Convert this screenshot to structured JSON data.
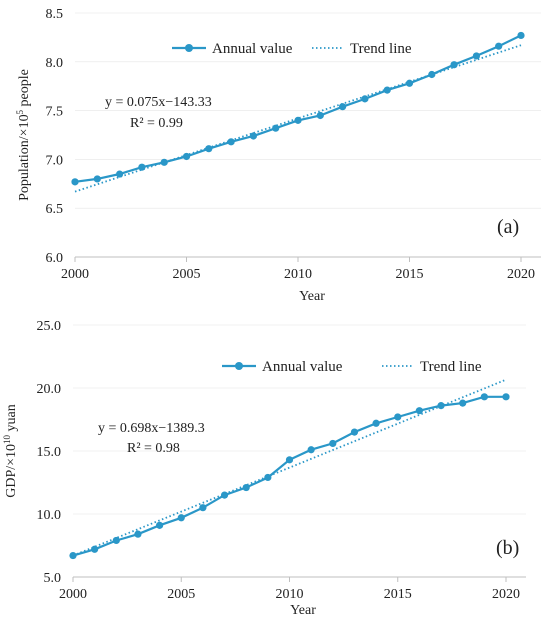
{
  "colors": {
    "series": "#2a97c8",
    "axis": "#bfbfbf",
    "text": "#222222"
  },
  "chart_data": [
    {
      "type": "line",
      "panel_label": "(a)",
      "xlabel": "Year",
      "ylabel_main": "Population/×10",
      "ylabel_sup": "5",
      "ylabel_tail": " people",
      "xlim": [
        2000,
        2020
      ],
      "ylim": [
        6.0,
        8.5
      ],
      "x_ticks": [
        "2000",
        "2005",
        "2010",
        "2015",
        "2020"
      ],
      "y_ticks": [
        "6.0",
        "6.5",
        "7.0",
        "7.5",
        "8.0",
        "8.5"
      ],
      "x_tick_values": [
        2000,
        2005,
        2010,
        2015,
        2020
      ],
      "y_tick_values": [
        6.0,
        6.5,
        7.0,
        7.5,
        8.0,
        8.5
      ],
      "legend": {
        "series_label": "Annual value",
        "trend_label": "Trend line",
        "position": "top-center"
      },
      "equation": "y = 0.075x−143.33",
      "r_squared": "R² = 0.99",
      "trend": {
        "slope": 0.075,
        "intercept": -143.33
      },
      "series": [
        {
          "name": "Annual value",
          "x": [
            2000,
            2001,
            2002,
            2003,
            2004,
            2005,
            2006,
            2007,
            2008,
            2009,
            2010,
            2011,
            2012,
            2013,
            2014,
            2015,
            2016,
            2017,
            2018,
            2019,
            2020
          ],
          "values": [
            6.77,
            6.8,
            6.85,
            6.92,
            6.97,
            7.03,
            7.11,
            7.18,
            7.24,
            7.32,
            7.4,
            7.45,
            7.54,
            7.62,
            7.71,
            7.78,
            7.87,
            7.97,
            8.06,
            8.16,
            8.27
          ]
        }
      ]
    },
    {
      "type": "line",
      "panel_label": "(b)",
      "xlabel": "Year",
      "ylabel_main": "GDP/×10",
      "ylabel_sup": "10",
      "ylabel_tail": " yuan",
      "xlim": [
        2000,
        2020
      ],
      "ylim": [
        5.0,
        25.0
      ],
      "x_ticks": [
        "2000",
        "2005",
        "2010",
        "2015",
        "2020"
      ],
      "y_ticks": [
        "5.0",
        "10.0",
        "15.0",
        "20.0",
        "25.0"
      ],
      "x_tick_values": [
        2000,
        2005,
        2010,
        2015,
        2020
      ],
      "y_tick_values": [
        5.0,
        10.0,
        15.0,
        20.0,
        25.0
      ],
      "legend": {
        "series_label": "Annual value",
        "trend_label": "Trend line",
        "position": "top-right"
      },
      "equation": "y = 0.698x−1389.3",
      "r_squared": "R² = 0.98",
      "trend": {
        "slope": 0.698,
        "intercept": -1389.3
      },
      "series": [
        {
          "name": "Annual value",
          "x": [
            2000,
            2001,
            2002,
            2003,
            2004,
            2005,
            2006,
            2007,
            2008,
            2009,
            2010,
            2011,
            2012,
            2013,
            2014,
            2015,
            2016,
            2017,
            2018,
            2019,
            2020
          ],
          "values": [
            6.7,
            7.2,
            7.9,
            8.4,
            9.1,
            9.7,
            10.5,
            11.5,
            12.1,
            12.9,
            14.3,
            15.1,
            15.6,
            16.5,
            17.2,
            17.7,
            18.2,
            18.6,
            18.8,
            19.3,
            19.3
          ]
        }
      ]
    }
  ]
}
